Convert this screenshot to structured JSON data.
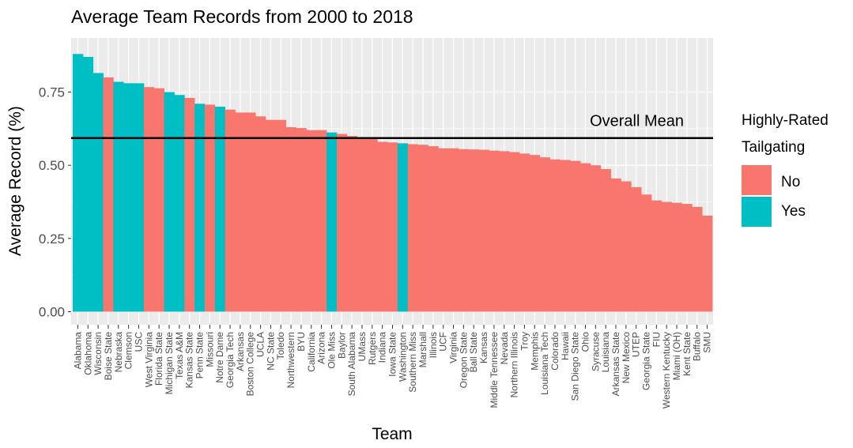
{
  "chart_data": {
    "type": "bar",
    "title": "Average Team Records from 2000 to 2018",
    "xlabel": "Team",
    "ylabel": "Average Record (%)",
    "ylim": [
      0,
      0.9
    ],
    "yticks": [
      "0.00",
      "0.25",
      "0.50",
      "0.75"
    ],
    "grid": true,
    "legend": {
      "position": "right",
      "title": "Highly-Rated Tailgating",
      "title_lines": [
        "Highly-Rated",
        "Tailgating"
      ],
      "entries": [
        {
          "label": "No",
          "color": "#F8766D"
        },
        {
          "label": "Yes",
          "color": "#00BFC4"
        }
      ]
    },
    "annotations": [
      {
        "text": "Overall Mean",
        "y": 0.593
      }
    ],
    "reference_line": {
      "y": 0.593
    },
    "categories": [
      "Alabama",
      "Oklahoma",
      "Wisconsin",
      "Boise State",
      "Nebraska",
      "Clemson",
      "USC",
      "West Virginia",
      "Florida State",
      "Michigan State",
      "Texas A&M",
      "Kansas State",
      "Penn State",
      "Missouri",
      "Notre Dame",
      "Georgia Tech",
      "Arkansas",
      "Boston College",
      "UCLA",
      "NC State",
      "Toledo",
      "Northwestern",
      "BYU",
      "California",
      "Arizona",
      "Ole Miss",
      "Baylor",
      "South Alabama",
      "UMass",
      "Rutgers",
      "Indiana",
      "Iowa State",
      "Washington",
      "Southern Miss",
      "Marshall",
      "Illinois",
      "UCF",
      "Virginia",
      "Oregon State",
      "Ball State",
      "Kansas",
      "Middle Tennessee",
      "Nevada",
      "Northern Illinois",
      "Troy",
      "Memphis",
      "Louisiana Tech",
      "Colorado",
      "Hawaii",
      "San Diego State",
      "Ohio",
      "Syracuse",
      "Louisiana",
      "Arkansas State",
      "New Mexico",
      "UTEP",
      "Georgia State",
      "FIU",
      "Western Kentucky",
      "Miami (OH)",
      "Kent State",
      "Buffalo",
      "SMU"
    ],
    "values": [
      0.88,
      0.87,
      0.815,
      0.8,
      0.785,
      0.78,
      0.78,
      0.767,
      0.763,
      0.75,
      0.74,
      0.73,
      0.71,
      0.707,
      0.7,
      0.69,
      0.68,
      0.68,
      0.667,
      0.655,
      0.655,
      0.63,
      0.627,
      0.62,
      0.62,
      0.612,
      0.607,
      0.6,
      0.592,
      0.59,
      0.58,
      0.578,
      0.575,
      0.572,
      0.57,
      0.565,
      0.558,
      0.558,
      0.555,
      0.554,
      0.553,
      0.55,
      0.548,
      0.545,
      0.54,
      0.535,
      0.527,
      0.52,
      0.518,
      0.515,
      0.507,
      0.5,
      0.487,
      0.455,
      0.445,
      0.425,
      0.4,
      0.38,
      0.375,
      0.372,
      0.368,
      0.358,
      0.328
    ],
    "tailgating": [
      "Yes",
      "Yes",
      "Yes",
      "No",
      "Yes",
      "Yes",
      "Yes",
      "No",
      "No",
      "Yes",
      "Yes",
      "No",
      "Yes",
      "No",
      "Yes",
      "No",
      "No",
      "No",
      "No",
      "No",
      "No",
      "No",
      "No",
      "No",
      "No",
      "Yes",
      "No",
      "No",
      "No",
      "No",
      "No",
      "No",
      "Yes",
      "No",
      "No",
      "No",
      "No",
      "No",
      "No",
      "No",
      "No",
      "No",
      "No",
      "No",
      "No",
      "No",
      "No",
      "No",
      "No",
      "No",
      "No",
      "No",
      "No",
      "No",
      "No",
      "No",
      "No",
      "No",
      "No",
      "No",
      "No",
      "No",
      "No"
    ],
    "labeled_categories": [
      "Alabama",
      "Oklahoma",
      "Wisconsin",
      "Boise State",
      "Nebraska",
      "Clemson",
      "USC",
      "West Virginia",
      "Florida State",
      "Michigan State",
      "Texas A&M",
      "Kansas State",
      "Penn State",
      "Missouri",
      "Notre Dame",
      "Georgia Tech",
      "Arkansas",
      "Boston College",
      "UCLA",
      "NC State",
      "Toledo",
      "Northwestern",
      "BYU",
      "California",
      "Arizona",
      "Ole Miss",
      "Baylor",
      "South Alabama",
      "UMass",
      "Rutgers",
      "Indiana",
      "Iowa State",
      "Washington",
      "Southern Miss",
      "Marshall",
      "Illinois",
      "UCF",
      "Virginia",
      "Oregon State",
      "Ball State",
      "Kansas",
      "Middle Tennessee",
      "Nevada",
      "Northern Illinois",
      "Troy",
      "Memphis",
      "Louisiana Tech",
      "Colorado",
      "Hawaii",
      "San Diego State",
      "Ohio",
      "Syracuse",
      "Louisiana",
      "Arkansas State",
      "New Mexico",
      "UTEP",
      "Georgia State",
      "FIU",
      "Western Kentucky",
      "Miami (OH)",
      "Kent State",
      "Buffalo",
      "SMU"
    ]
  }
}
